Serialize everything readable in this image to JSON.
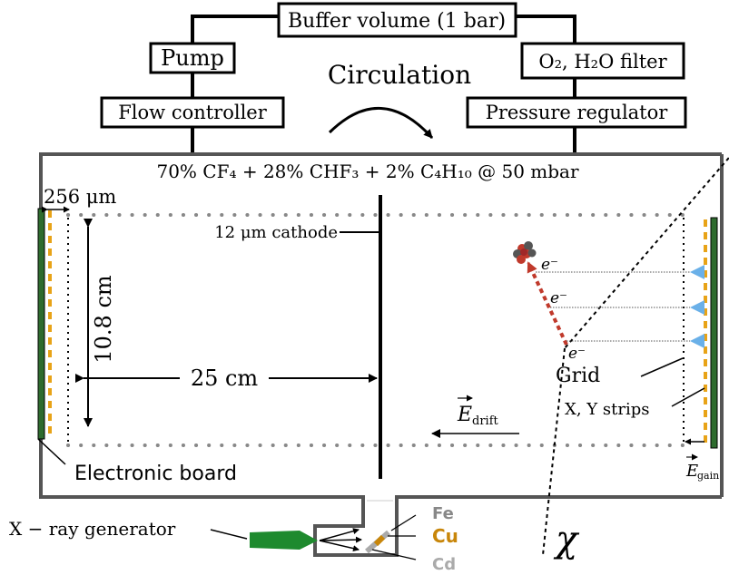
{
  "boxes": {
    "buffer": "Buffer volume (1 bar)",
    "pump": "Pump",
    "filter": "O₂, H₂O filter",
    "flow_controller": "Flow controller",
    "pressure_regulator": "Pressure regulator"
  },
  "circulation": "Circulation",
  "gas_mixture": "70% CF₄ + 28% CHF₃ + 2% C₄H₁₀ @ 50 mbar",
  "labels": {
    "gap": "256 μm",
    "cathode": "12 μm cathode",
    "height": "10.8 cm",
    "length": "25 cm",
    "electron": "e⁻",
    "grid": "Grid",
    "strips": "X, Y strips",
    "e_drift": "E",
    "e_drift_sub": "drift",
    "e_gain": "E",
    "e_gain_sub": "gain",
    "electronic_board": "Electronic board",
    "xray_generator": "X − ray generator",
    "chi": "χ"
  },
  "targets": [
    "Fe",
    "Cu",
    "Cd"
  ],
  "colors": {
    "vessel": "#555555",
    "board": "#2e6b2e",
    "strips": "#e8a317",
    "electron_arrow": "#c0392b",
    "grid_arrow": "#6ab0e8",
    "generator": "#1e8a2e",
    "target_fe": "#888888",
    "target_cu": "#c8860a",
    "target_cd": "#aaaaaa"
  }
}
